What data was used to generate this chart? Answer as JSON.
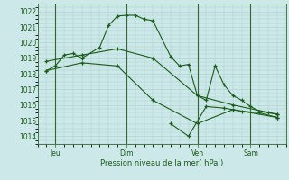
{
  "xlabel": "Pression niveau de la mer( hPa )",
  "bg_color": "#cce8e8",
  "grid_color": "#aacccc",
  "line_color": "#1a5c1a",
  "vline_color": "#336633",
  "ylim": [
    1013.5,
    1022.5
  ],
  "yticks": [
    1014,
    1015,
    1016,
    1017,
    1018,
    1019,
    1020,
    1021,
    1022
  ],
  "xlim": [
    0,
    28
  ],
  "day_positions": [
    2,
    10,
    18,
    24
  ],
  "day_labels": [
    "Jeu",
    "Dim",
    "Ven",
    "Sam"
  ],
  "line1_x": [
    1,
    2,
    3,
    4,
    5,
    7,
    8,
    9,
    10,
    11,
    12,
    13,
    15,
    16,
    17,
    18,
    19,
    20,
    21,
    22,
    23,
    24,
    25,
    26,
    27
  ],
  "line1_y": [
    1018.2,
    1018.5,
    1019.2,
    1019.3,
    1019.0,
    1019.7,
    1021.1,
    1021.7,
    1021.75,
    1021.75,
    1021.5,
    1021.4,
    1019.1,
    1018.5,
    1018.6,
    1016.6,
    1016.3,
    1018.5,
    1017.3,
    1016.6,
    1016.3,
    1015.9,
    1015.6,
    1015.5,
    1015.4
  ],
  "line2_x": [
    1,
    5,
    9,
    13,
    18,
    22,
    27
  ],
  "line2_y": [
    1018.8,
    1019.2,
    1019.6,
    1019.0,
    1016.6,
    1016.0,
    1015.4
  ],
  "line3_x": [
    1,
    5,
    9,
    13,
    18,
    22,
    27
  ],
  "line3_y": [
    1018.2,
    1018.7,
    1018.5,
    1016.3,
    1014.8,
    1015.7,
    1015.2
  ],
  "line4_x": [
    15,
    17,
    19,
    21,
    23,
    25,
    27
  ],
  "line4_y": [
    1014.8,
    1014.0,
    1015.9,
    1015.8,
    1015.6,
    1015.5,
    1015.2
  ]
}
